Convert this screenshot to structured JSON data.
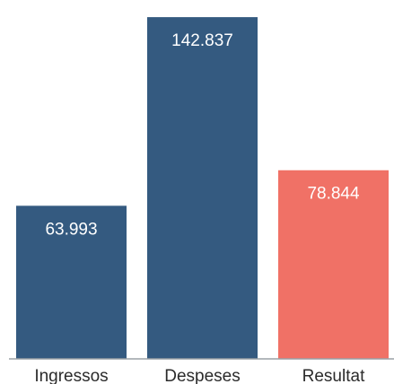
{
  "chart_data": {
    "type": "bar",
    "categories": [
      "Ingressos",
      "Despeses",
      "Resultat"
    ],
    "values": [
      63993,
      142837,
      78844
    ],
    "value_labels": [
      "63.993",
      "142.837",
      "78.844"
    ],
    "ylim": [
      0,
      150000
    ],
    "grid": false,
    "colors": [
      "#345a80",
      "#345a80",
      "#f07166"
    ],
    "axis_color": "#9aa0a6"
  }
}
